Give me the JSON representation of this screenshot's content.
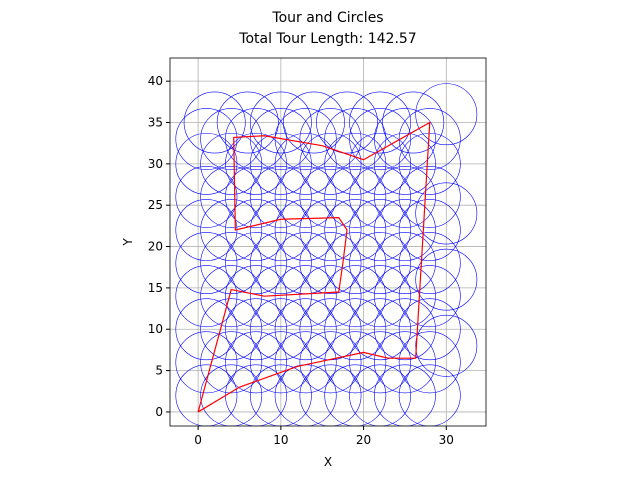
{
  "chart_data": {
    "type": "scatter",
    "title": "Tour and Circles",
    "subtitle": "Total Tour Length: 142.57",
    "x_label": "X",
    "y_label": "Y",
    "xlim": [
      -3.4,
      34.8
    ],
    "ylim": [
      -1.7,
      42.8
    ],
    "xticks": [
      0,
      10,
      20,
      30
    ],
    "yticks": [
      0,
      5,
      10,
      15,
      20,
      25,
      30,
      35,
      40
    ],
    "grid": true,
    "circle_color": "#0000ff",
    "tour_color": "#ff0000",
    "circle_radius": 3.7,
    "circles": {
      "x": [
        1,
        4,
        7,
        10,
        13,
        16,
        19,
        22,
        25,
        28,
        1,
        4,
        7,
        10,
        13,
        16,
        19,
        22,
        25,
        28,
        1,
        4,
        7,
        10,
        13,
        16,
        19,
        22,
        25,
        28,
        1,
        4,
        7,
        10,
        13,
        16,
        19,
        22,
        25,
        28,
        1,
        4,
        7,
        10,
        13,
        16,
        19,
        22,
        25,
        28,
        1,
        4,
        7,
        10,
        13,
        16,
        19,
        22,
        25,
        28,
        1,
        4,
        7,
        10,
        13,
        16,
        19,
        22,
        25,
        28,
        1,
        4,
        7,
        10,
        13,
        16,
        19,
        22,
        25,
        28,
        1,
        4,
        7,
        10,
        13,
        16,
        19,
        22,
        25,
        28,
        2,
        6,
        10,
        14,
        18,
        22,
        26,
        30,
        30,
        30,
        30
      ],
      "y": [
        2,
        2,
        2,
        2,
        2,
        2,
        2,
        2,
        2,
        2,
        6,
        6,
        6,
        6,
        6,
        6,
        6,
        6,
        6,
        6,
        10,
        10,
        10,
        10,
        10,
        10,
        10,
        10,
        10,
        10,
        14,
        14,
        14,
        14,
        14,
        14,
        14,
        14,
        14,
        14,
        18,
        18,
        18,
        18,
        18,
        18,
        18,
        18,
        18,
        18,
        22,
        22,
        22,
        22,
        22,
        22,
        22,
        22,
        22,
        22,
        26,
        26,
        26,
        26,
        26,
        26,
        26,
        26,
        26,
        26,
        30,
        30,
        30,
        30,
        30,
        30,
        30,
        30,
        30,
        30,
        33,
        33,
        33,
        33,
        33,
        33,
        33,
        33,
        33,
        33,
        35,
        35,
        35,
        35,
        35,
        35,
        35,
        36,
        8,
        16,
        24
      ]
    },
    "tour": {
      "x": [
        0,
        4,
        8,
        17,
        17.5,
        18,
        17,
        10,
        4.5,
        4.3,
        8,
        15,
        20,
        28,
        26.3,
        23,
        20,
        12,
        5,
        0
      ],
      "y": [
        0,
        14.8,
        14,
        14.5,
        18,
        22,
        23.5,
        23.3,
        22,
        33.2,
        33.4,
        32.2,
        30.5,
        35,
        6.5,
        6.5,
        7.2,
        5.5,
        3,
        0
      ]
    }
  }
}
